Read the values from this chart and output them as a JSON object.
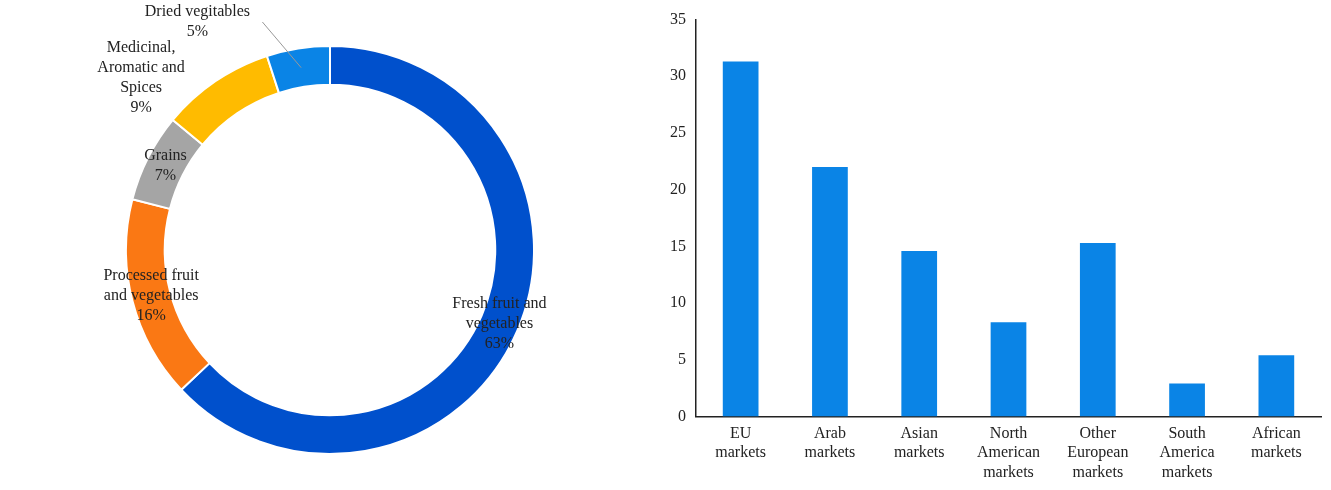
{
  "chart_data": [
    {
      "type": "donut",
      "categories": [
        "Fresh fruit and vegetables",
        "Processed fruit and vegetables",
        "Grains",
        "Medicinal, Aromatic and Spices",
        "Dried vegitables"
      ],
      "values": [
        63,
        16,
        7,
        9,
        5
      ],
      "colors": [
        "#0050cc",
        "#fa7814",
        "#a5a5a5",
        "#ffbb00",
        "#0a84e6"
      ],
      "value_labels": [
        "63%",
        "16%",
        "7%",
        "9%",
        "5%"
      ],
      "legend": false
    },
    {
      "type": "bar",
      "categories": [
        "EU markets",
        "Arab markets",
        "Asian markets",
        "North American markets",
        "Other European markets",
        "South America markets",
        "African markets"
      ],
      "values": [
        31.3,
        22,
        14.6,
        8.3,
        15.3,
        2.9,
        5.4
      ],
      "color": "#0a84e6",
      "ylim": [
        0,
        35
      ],
      "yticks": [
        0,
        5,
        10,
        15,
        20,
        25,
        30,
        35
      ],
      "grid": false,
      "legend": false
    }
  ]
}
